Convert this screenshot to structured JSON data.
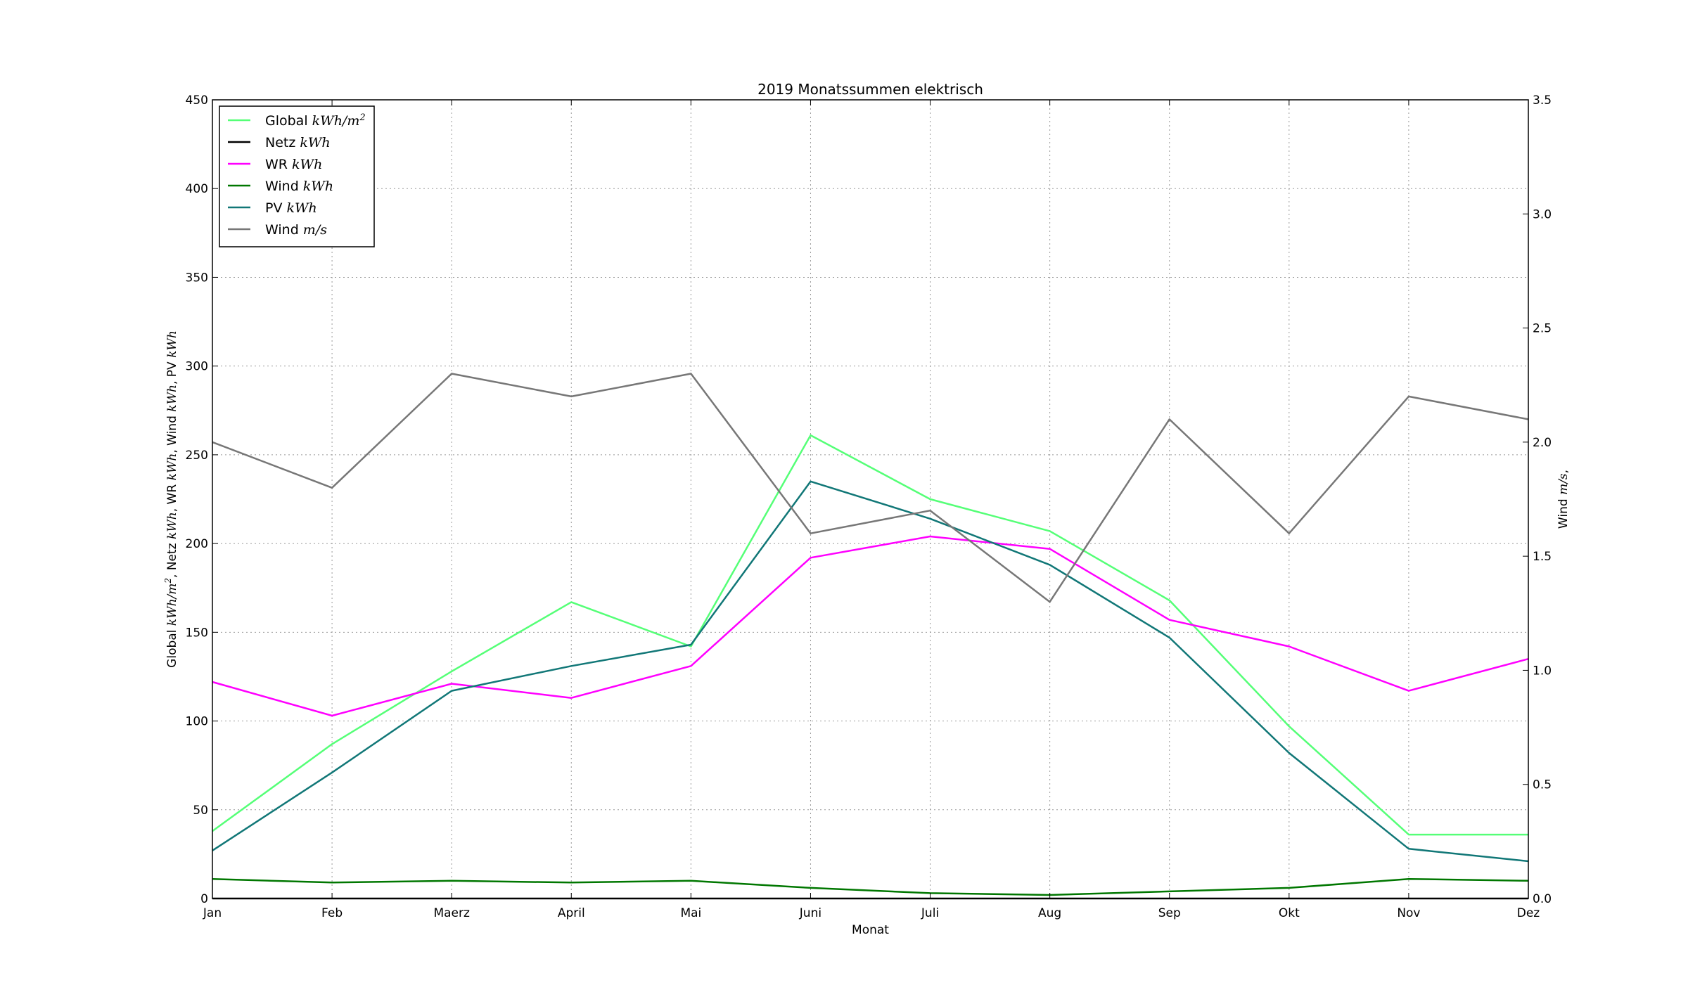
{
  "chart_data": {
    "type": "line",
    "title": "2019 Monatssummen elektrisch",
    "xlabel": "Monat",
    "ylabel_left": {
      "parts": [
        {
          "text": "Global ",
          "math": false
        },
        {
          "text": "kWh/m",
          "math": true
        },
        {
          "text": "2",
          "math": true,
          "sup": true
        },
        {
          "text": ", Netz ",
          "math": false
        },
        {
          "text": "kWh",
          "math": true
        },
        {
          "text": ", WR ",
          "math": false
        },
        {
          "text": "kWh",
          "math": true
        },
        {
          "text": ", Wind ",
          "math": false
        },
        {
          "text": "kWh",
          "math": true
        },
        {
          "text": ", PV ",
          "math": false
        },
        {
          "text": "kWh",
          "math": true
        }
      ]
    },
    "ylabel_right": {
      "parts": [
        {
          "text": "Wind ",
          "math": false
        },
        {
          "text": "m/s",
          "math": true
        },
        {
          "text": ",",
          "math": false
        }
      ]
    },
    "categories": [
      "Jan",
      "Feb",
      "Maerz",
      "April",
      "Mai",
      "Juni",
      "Juli",
      "Aug",
      "Sep",
      "Okt",
      "Nov",
      "Dez"
    ],
    "ylim_left": [
      0,
      450
    ],
    "yticks_left": [
      0,
      50,
      100,
      150,
      200,
      250,
      300,
      350,
      400,
      450
    ],
    "ylim_right": [
      0,
      3.5
    ],
    "yticks_right": [
      "0.0",
      "0.5",
      "1.0",
      "1.5",
      "2.0",
      "2.5",
      "3.0",
      "3.5"
    ],
    "grid": true,
    "legend_position": "top-left",
    "series": [
      {
        "name": "Global",
        "unit": "kWh/m",
        "unit_sup": "2",
        "color": "#55ff77",
        "axis": "left",
        "values": [
          38,
          87,
          128,
          167,
          142,
          261,
          225,
          207,
          168,
          97,
          36,
          36
        ]
      },
      {
        "name": "Netz",
        "unit": "kWh",
        "color": "#000000",
        "axis": "left",
        "values": [
          0,
          0,
          0,
          0,
          0,
          0,
          0,
          0,
          0,
          0,
          0,
          0
        ]
      },
      {
        "name": "WR",
        "unit": "kWh",
        "color": "#ff00ff",
        "axis": "left",
        "values": [
          122,
          103,
          121,
          113,
          131,
          192,
          204,
          197,
          157,
          142,
          117,
          135
        ]
      },
      {
        "name": "Wind",
        "unit": "kWh",
        "color": "#007700",
        "axis": "left",
        "values": [
          11,
          9,
          10,
          9,
          10,
          6,
          3,
          2,
          4,
          6,
          11,
          10
        ]
      },
      {
        "name": "PV",
        "unit": "kWh",
        "color": "#117777",
        "axis": "left",
        "values": [
          27,
          71,
          117,
          131,
          143,
          235,
          214,
          188,
          147,
          82,
          28,
          21
        ]
      },
      {
        "name": "Wind",
        "unit": "m/s",
        "color": "#777777",
        "axis": "right",
        "values": [
          2.0,
          1.8,
          2.3,
          2.2,
          2.3,
          1.6,
          1.7,
          1.3,
          2.1,
          1.6,
          2.2,
          2.1
        ]
      }
    ]
  }
}
